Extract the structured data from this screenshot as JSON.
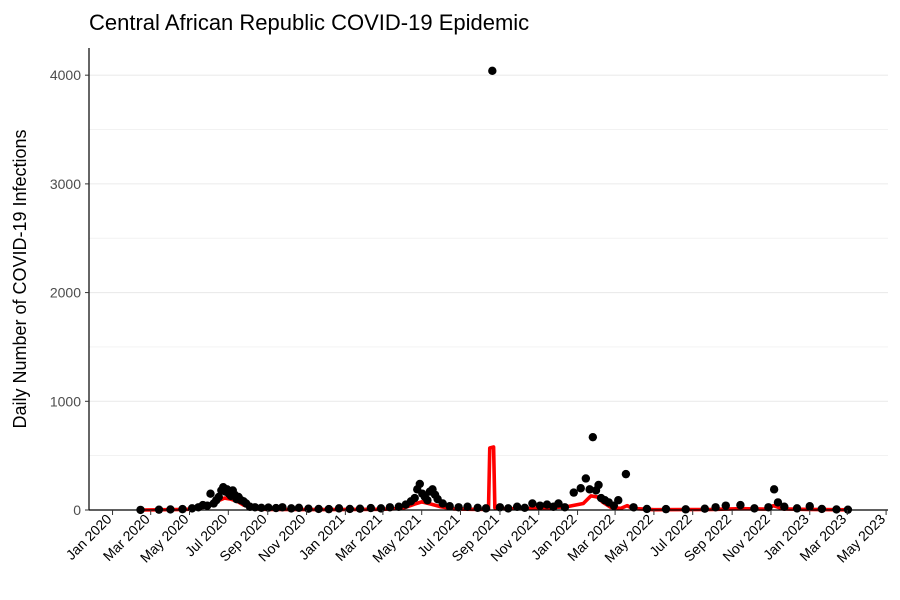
{
  "chart_data": {
    "type": "scatter",
    "title": "Central African Republic COVID-19 Epidemic",
    "xlabel": "",
    "ylabel": "Daily Number of COVID-19 Infections",
    "ylim": [
      0,
      4250
    ],
    "yticks": [
      0,
      1000,
      2000,
      3000,
      4000
    ],
    "xlim": [
      "2019-11-25",
      "2023-05-04"
    ],
    "xtick_labels": [
      {
        "date": "2020-01-01",
        "label": "Jan 2020"
      },
      {
        "date": "2020-03-01",
        "label": "Mar 2020"
      },
      {
        "date": "2020-05-01",
        "label": "May 2020"
      },
      {
        "date": "2020-07-01",
        "label": "Jul 2020"
      },
      {
        "date": "2020-09-01",
        "label": "Sep 2020"
      },
      {
        "date": "2020-11-01",
        "label": "Nov 2020"
      },
      {
        "date": "2021-01-01",
        "label": "Jan 2021"
      },
      {
        "date": "2021-03-01",
        "label": "Mar 2021"
      },
      {
        "date": "2021-05-01",
        "label": "May 2021"
      },
      {
        "date": "2021-07-01",
        "label": "Jul 2021"
      },
      {
        "date": "2021-09-01",
        "label": "Sep 2021"
      },
      {
        "date": "2021-11-01",
        "label": "Nov 2021"
      },
      {
        "date": "2022-01-01",
        "label": "Jan 2022"
      },
      {
        "date": "2022-03-01",
        "label": "Mar 2022"
      },
      {
        "date": "2022-05-01",
        "label": "May 2022"
      },
      {
        "date": "2022-07-01",
        "label": "Jul 2022"
      },
      {
        "date": "2022-09-01",
        "label": "Sep 2022"
      },
      {
        "date": "2022-11-01",
        "label": "Nov 2022"
      },
      {
        "date": "2023-01-01",
        "label": "Jan 2023"
      },
      {
        "date": "2023-03-01",
        "label": "Mar 2023"
      },
      {
        "date": "2023-05-01",
        "label": "May 2023"
      }
    ],
    "grid": true,
    "colors": {
      "points": "#000000",
      "smoothed_line": "#ff0000",
      "grid": "#ebebeb",
      "axis": "#000000"
    },
    "series": [
      {
        "style": "points",
        "points": [
          [
            "2020-02-14",
            1
          ],
          [
            "2020-03-14",
            3
          ],
          [
            "2020-04-01",
            5
          ],
          [
            "2020-04-20",
            8
          ],
          [
            "2020-05-05",
            15
          ],
          [
            "2020-05-15",
            25
          ],
          [
            "2020-05-22",
            45
          ],
          [
            "2020-05-29",
            40
          ],
          [
            "2020-06-03",
            150
          ],
          [
            "2020-06-08",
            60
          ],
          [
            "2020-06-12",
            90
          ],
          [
            "2020-06-16",
            120
          ],
          [
            "2020-06-20",
            180
          ],
          [
            "2020-06-23",
            210
          ],
          [
            "2020-06-26",
            170
          ],
          [
            "2020-06-29",
            190
          ],
          [
            "2020-07-02",
            150
          ],
          [
            "2020-07-05",
            130
          ],
          [
            "2020-07-08",
            180
          ],
          [
            "2020-07-11",
            140
          ],
          [
            "2020-07-14",
            100
          ],
          [
            "2020-07-17",
            120
          ],
          [
            "2020-07-21",
            90
          ],
          [
            "2020-07-25",
            80
          ],
          [
            "2020-07-29",
            60
          ],
          [
            "2020-08-04",
            30
          ],
          [
            "2020-08-12",
            25
          ],
          [
            "2020-08-22",
            20
          ],
          [
            "2020-09-02",
            22
          ],
          [
            "2020-09-14",
            18
          ],
          [
            "2020-09-24",
            25
          ],
          [
            "2020-10-08",
            15
          ],
          [
            "2020-10-20",
            20
          ],
          [
            "2020-11-04",
            12
          ],
          [
            "2020-11-20",
            10
          ],
          [
            "2020-12-06",
            8
          ],
          [
            "2020-12-22",
            15
          ],
          [
            "2021-01-08",
            10
          ],
          [
            "2021-01-24",
            12
          ],
          [
            "2021-02-10",
            18
          ],
          [
            "2021-02-26",
            15
          ],
          [
            "2021-03-12",
            25
          ],
          [
            "2021-03-26",
            30
          ],
          [
            "2021-04-06",
            50
          ],
          [
            "2021-04-14",
            80
          ],
          [
            "2021-04-20",
            110
          ],
          [
            "2021-04-24",
            190
          ],
          [
            "2021-04-28",
            240
          ],
          [
            "2021-05-02",
            150
          ],
          [
            "2021-05-06",
            120
          ],
          [
            "2021-05-10",
            90
          ],
          [
            "2021-05-14",
            170
          ],
          [
            "2021-05-18",
            190
          ],
          [
            "2021-05-22",
            140
          ],
          [
            "2021-05-26",
            100
          ],
          [
            "2021-06-03",
            60
          ],
          [
            "2021-06-14",
            35
          ],
          [
            "2021-06-28",
            25
          ],
          [
            "2021-07-12",
            30
          ],
          [
            "2021-07-28",
            20
          ],
          [
            "2021-08-10",
            15
          ],
          [
            "2021-08-20",
            4040
          ],
          [
            "2021-09-01",
            25
          ],
          [
            "2021-09-14",
            15
          ],
          [
            "2021-09-28",
            30
          ],
          [
            "2021-10-10",
            20
          ],
          [
            "2021-10-22",
            60
          ],
          [
            "2021-11-03",
            40
          ],
          [
            "2021-11-14",
            50
          ],
          [
            "2021-11-24",
            30
          ],
          [
            "2021-12-02",
            60
          ],
          [
            "2021-12-12",
            25
          ],
          [
            "2021-12-26",
            160
          ],
          [
            "2022-01-06",
            200
          ],
          [
            "2022-01-14",
            290
          ],
          [
            "2022-01-20",
            190
          ],
          [
            "2022-01-25",
            670
          ],
          [
            "2022-01-30",
            180
          ],
          [
            "2022-02-03",
            230
          ],
          [
            "2022-02-07",
            110
          ],
          [
            "2022-02-13",
            90
          ],
          [
            "2022-02-19",
            70
          ],
          [
            "2022-02-27",
            40
          ],
          [
            "2022-03-06",
            90
          ],
          [
            "2022-03-18",
            330
          ],
          [
            "2022-03-30",
            25
          ],
          [
            "2022-04-20",
            10
          ],
          [
            "2022-05-20",
            8
          ],
          [
            "2022-06-20",
            6
          ],
          [
            "2022-07-20",
            12
          ],
          [
            "2022-08-06",
            25
          ],
          [
            "2022-08-22",
            40
          ],
          [
            "2022-09-14",
            45
          ],
          [
            "2022-10-06",
            15
          ],
          [
            "2022-10-28",
            25
          ],
          [
            "2022-11-06",
            190
          ],
          [
            "2022-11-12",
            70
          ],
          [
            "2022-11-22",
            30
          ],
          [
            "2022-12-12",
            15
          ],
          [
            "2023-01-01",
            35
          ],
          [
            "2023-01-20",
            10
          ],
          [
            "2023-02-12",
            5
          ],
          [
            "2023-03-02",
            3
          ]
        ]
      },
      {
        "style": "line",
        "points": [
          [
            "2020-02-14",
            0
          ],
          [
            "2020-04-25",
            5
          ],
          [
            "2020-05-15",
            15
          ],
          [
            "2020-05-31",
            40
          ],
          [
            "2020-06-15",
            85
          ],
          [
            "2020-06-25",
            110
          ],
          [
            "2020-07-05",
            100
          ],
          [
            "2020-07-15",
            80
          ],
          [
            "2020-07-25",
            45
          ],
          [
            "2020-08-10",
            12
          ],
          [
            "2020-09-01",
            5
          ],
          [
            "2020-12-01",
            4
          ],
          [
            "2021-03-01",
            6
          ],
          [
            "2021-04-01",
            15
          ],
          [
            "2021-04-20",
            55
          ],
          [
            "2021-05-01",
            75
          ],
          [
            "2021-05-15",
            55
          ],
          [
            "2021-05-31",
            30
          ],
          [
            "2021-06-20",
            10
          ],
          [
            "2021-07-20",
            6
          ],
          [
            "2021-08-14",
            6
          ],
          [
            "2021-08-16",
            570
          ],
          [
            "2021-08-22",
            580
          ],
          [
            "2021-08-24",
            20
          ],
          [
            "2021-09-10",
            10
          ],
          [
            "2021-10-15",
            15
          ],
          [
            "2021-11-15",
            20
          ],
          [
            "2021-12-15",
            30
          ],
          [
            "2022-01-10",
            60
          ],
          [
            "2022-01-22",
            130
          ],
          [
            "2022-02-01",
            120
          ],
          [
            "2022-02-10",
            70
          ],
          [
            "2022-02-22",
            25
          ],
          [
            "2022-03-10",
            15
          ],
          [
            "2022-03-20",
            40
          ],
          [
            "2022-03-28",
            15
          ],
          [
            "2022-05-01",
            3
          ],
          [
            "2022-08-01",
            5
          ],
          [
            "2022-09-15",
            12
          ],
          [
            "2022-10-25",
            8
          ],
          [
            "2022-11-05",
            40
          ],
          [
            "2022-11-20",
            10
          ],
          [
            "2023-01-01",
            5
          ],
          [
            "2023-03-04",
            2
          ]
        ]
      }
    ]
  }
}
